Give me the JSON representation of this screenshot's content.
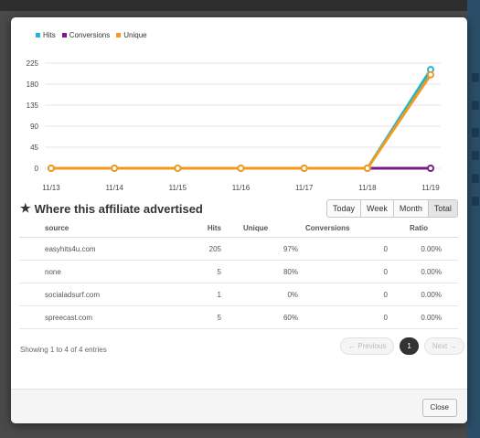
{
  "legend": [
    {
      "label": "Hits",
      "color": "#1fb5d3"
    },
    {
      "label": "Conversions",
      "color": "#7b1b8a"
    },
    {
      "label": "Unique",
      "color": "#f19a1d"
    }
  ],
  "chart_data": {
    "type": "line",
    "x": [
      "11/13",
      "11/14",
      "11/15",
      "11/16",
      "11/17",
      "11/18",
      "11/19"
    ],
    "yticks": [
      0,
      45,
      90,
      135,
      180,
      225
    ],
    "ylim": [
      0,
      225
    ],
    "grid": true,
    "series": [
      {
        "name": "Hits",
        "color": "#1fb5d3",
        "values": [
          0,
          0,
          0,
          0,
          0,
          0,
          211
        ]
      },
      {
        "name": "Conversions",
        "color": "#7b1b8a",
        "values": [
          0,
          0,
          0,
          0,
          0,
          0,
          0
        ]
      },
      {
        "name": "Unique",
        "color": "#f19a1d",
        "values": [
          0,
          0,
          0,
          0,
          0,
          0,
          200
        ]
      }
    ]
  },
  "section": {
    "title": "Where this affiliate advertised",
    "icon": "star-icon"
  },
  "period_buttons": [
    "Today",
    "Week",
    "Month",
    "Total"
  ],
  "table": {
    "headers": [
      "source",
      "Hits",
      "Unique",
      "Conversions",
      "Ratio"
    ],
    "rows": [
      [
        "easyhits4u.com",
        "205",
        "97%",
        "0",
        "0.00%"
      ],
      [
        "none",
        "5",
        "80%",
        "0",
        "0.00%"
      ],
      [
        "socialadsurf.com",
        "1",
        "0%",
        "0",
        "0.00%"
      ],
      [
        "spreecast.com",
        "5",
        "60%",
        "0",
        "0.00%"
      ]
    ]
  },
  "pagination": {
    "info": "Showing 1 to 4 of 4 entries",
    "prev": "← Previous",
    "page": "1",
    "next": "Next →"
  },
  "footer": {
    "close": "Close"
  }
}
